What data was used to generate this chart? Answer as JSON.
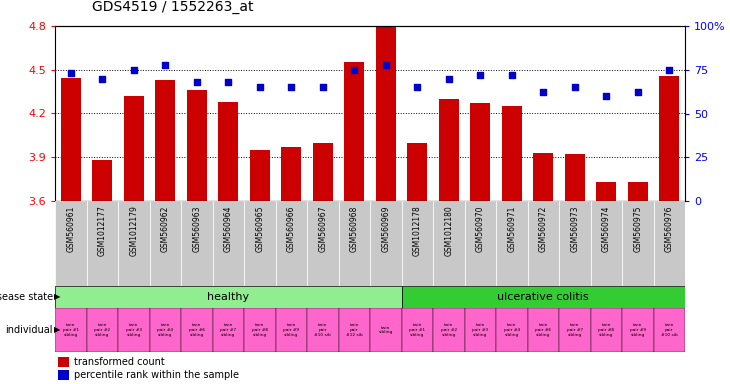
{
  "title": "GDS4519 / 1552263_at",
  "samples": [
    "GSM560961",
    "GSM1012177",
    "GSM1012179",
    "GSM560962",
    "GSM560963",
    "GSM560964",
    "GSM560965",
    "GSM560966",
    "GSM560967",
    "GSM560968",
    "GSM560969",
    "GSM1012178",
    "GSM1012180",
    "GSM560970",
    "GSM560971",
    "GSM560972",
    "GSM560973",
    "GSM560974",
    "GSM560975",
    "GSM560976"
  ],
  "bar_values": [
    4.44,
    3.88,
    4.32,
    4.43,
    4.36,
    4.28,
    3.95,
    3.97,
    4.0,
    4.55,
    4.8,
    4.0,
    4.3,
    4.27,
    4.25,
    3.93,
    3.92,
    3.73,
    3.73,
    4.46
  ],
  "percentile_values": [
    73,
    70,
    75,
    78,
    68,
    68,
    65,
    65,
    65,
    75,
    78,
    65,
    70,
    72,
    72,
    62,
    65,
    60,
    62,
    75
  ],
  "ylim_left": [
    3.6,
    4.8
  ],
  "ylim_right": [
    0,
    100
  ],
  "yticks_left": [
    3.6,
    3.9,
    4.2,
    4.5,
    4.8
  ],
  "yticks_right": [
    0,
    25,
    50,
    75,
    100
  ],
  "ytick_labels_left": [
    "3.6",
    "3.9",
    "4.2",
    "4.5",
    "4.8"
  ],
  "ytick_labels_right": [
    "0",
    "25",
    "50",
    "75",
    "100%"
  ],
  "disease_states": [
    "healthy",
    "healthy",
    "healthy",
    "healthy",
    "healthy",
    "healthy",
    "healthy",
    "healthy",
    "healthy",
    "healthy",
    "healthy",
    "ulcerative colitis",
    "ulcerative colitis",
    "ulcerative colitis",
    "ulcerative colitis",
    "ulcerative colitis",
    "ulcerative colitis",
    "ulcerative colitis",
    "ulcerative colitis",
    "ulcerative colitis"
  ],
  "individuals": [
    "twin\npair #1\nsibling",
    "twin\npair #2\nsibling",
    "twin\npair #3\nsibling",
    "twin\npair #4\nsibling",
    "twin\npair #6\nsibling",
    "twin\npair #7\nsibling",
    "twin\npair #8\nsibling",
    "twin\npair #9\nsibling",
    "twin\npair\n#10 sib",
    "twin\npair\n#12 sib",
    "twin\nsibling",
    "twin\npair #1\nsibling",
    "twin\npair #2\nsibling",
    "twin\npair #3\nsibling",
    "twin\npair #4\nsibling",
    "twin\npair #6\nsibling",
    "twin\npair #7\nsibling",
    "twin\npair #8\nsibling",
    "twin\npair #9\nsibling",
    "twin\npair\n#10 sib"
  ],
  "n_healthy": 11,
  "healthy_color": "#90EE90",
  "uc_color": "#33CC33",
  "individual_color": "#FF66CC",
  "bar_color": "#CC0000",
  "dot_color": "#0000CC",
  "tick_label_bg": "#C8C8C8"
}
